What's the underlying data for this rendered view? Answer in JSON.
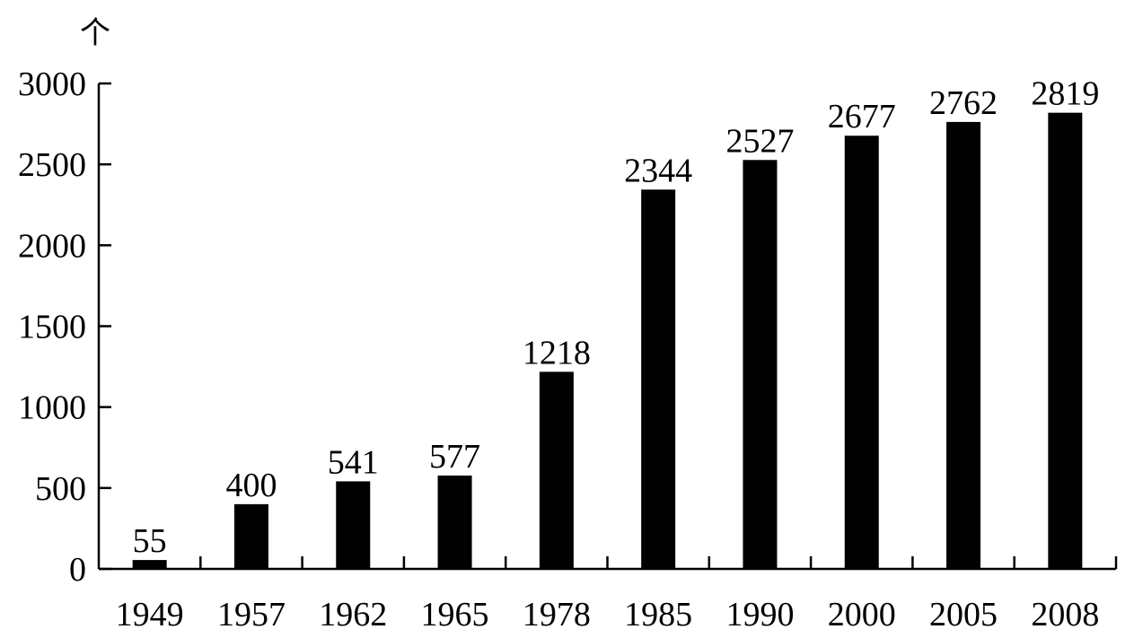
{
  "chart_data": {
    "type": "bar",
    "title": "",
    "xlabel": "",
    "ylabel": "个",
    "categories": [
      "1949",
      "1957",
      "1962",
      "1965",
      "1978",
      "1985",
      "1990",
      "2000",
      "2005",
      "2008"
    ],
    "values": [
      55,
      400,
      541,
      577,
      1218,
      2344,
      2527,
      2677,
      2762,
      2819
    ],
    "value_labels": [
      "55",
      "400",
      "541",
      "577",
      "1218",
      "2344",
      "2527",
      "2677",
      "2762",
      "2819"
    ],
    "yticks": [
      "0",
      "500",
      "1000",
      "1500",
      "2000",
      "2500",
      "3000"
    ],
    "ylim": [
      0,
      3000
    ],
    "grid": false,
    "legend": "none",
    "bar_color": "#000000"
  }
}
